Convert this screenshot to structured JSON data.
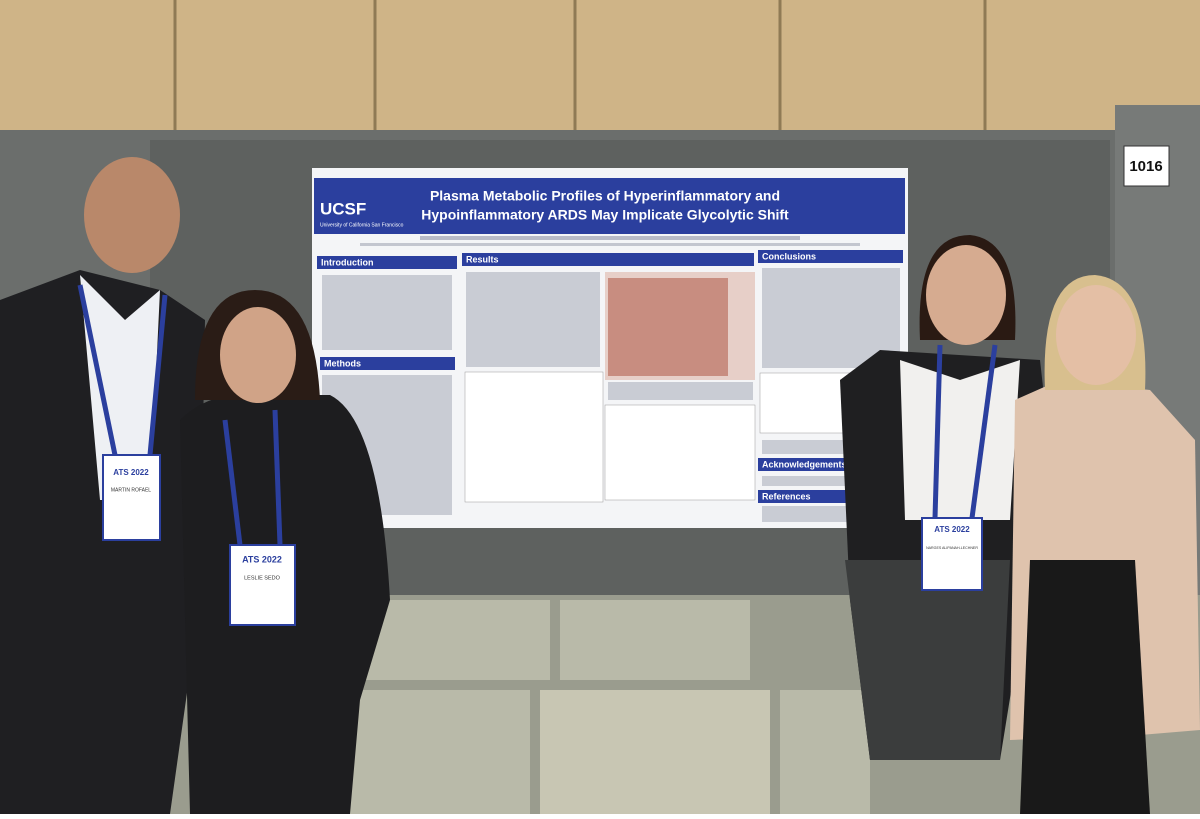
{
  "booth": "1016",
  "poster": {
    "logo": "UCSF",
    "institution": "University of California San Francisco",
    "title_line1": "Plasma Metabolic Profiles of Hyperinflammatory and",
    "title_line2": "Hypoinflammatory ARDS May Implicate Glycolytic Shift",
    "sections": [
      "Introduction",
      "Results",
      "Conclusions",
      "Methods",
      "Acknowledgements",
      "References"
    ]
  },
  "badges": [
    {
      "event": "ATS 2022",
      "name": "MARTIN ROFAEL"
    },
    {
      "event": "ATS 2022",
      "name": "LESLIE SEDO"
    },
    {
      "event": "ATS 2022",
      "name": "NARGES ALIPANAH-LECHNER"
    }
  ]
}
